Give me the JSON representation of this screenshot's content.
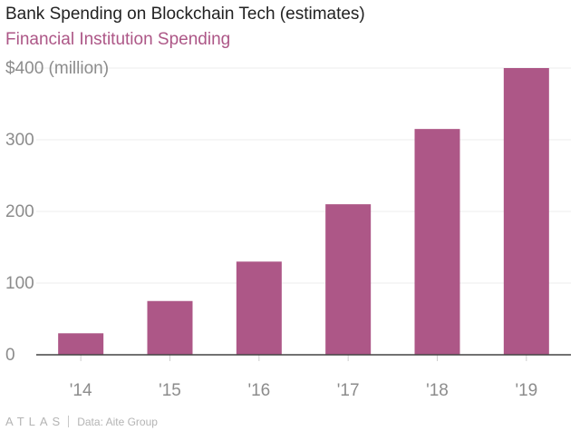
{
  "title": "Bank Spending on Blockchain Tech (estimates)",
  "subtitle": "Financial Institution Spending",
  "colors": {
    "bar": "#ad5787",
    "subtitle": "#ad5787",
    "grid": "#ececec",
    "tick_label": "#8c8c8c",
    "baseline": "#444444"
  },
  "footer": {
    "brand": "ATLAS",
    "source": "Data: Aite Group"
  },
  "chart_data": {
    "type": "bar",
    "title": "Bank Spending on Blockchain Tech (estimates)",
    "subtitle": "Financial Institution Spending",
    "categories": [
      "'14",
      "'15",
      "'16",
      "'17",
      "'18",
      "'19"
    ],
    "series": [
      {
        "name": "Financial Institution Spending",
        "values": [
          30,
          75,
          130,
          210,
          315,
          400
        ]
      }
    ],
    "ylim": [
      0,
      400
    ],
    "yticks": [
      0,
      100,
      200,
      300,
      400
    ],
    "ytick_labels": [
      "0",
      "100",
      "200",
      "300",
      "$400 (million)"
    ],
    "xlabel": "",
    "ylabel": "",
    "grid": true,
    "legend": "none"
  }
}
